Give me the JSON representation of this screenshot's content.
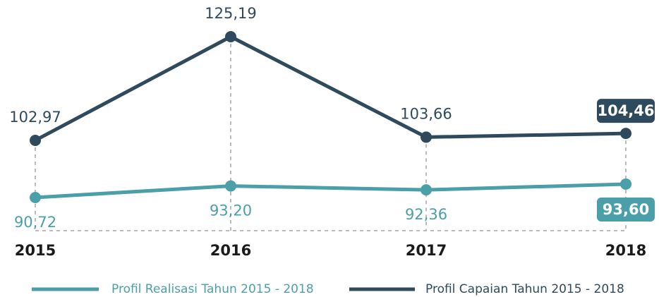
{
  "chart_data": {
    "type": "line",
    "categories": [
      "2015",
      "2016",
      "2017",
      "2018"
    ],
    "series": [
      {
        "name": "Profil Realisasi Tahun 2015 - 2018",
        "color": "#4b9fa9",
        "values": [
          90.72,
          93.2,
          92.36,
          93.6
        ],
        "value_labels": [
          "90,72",
          "93,20",
          "92,36",
          "93,60"
        ]
      },
      {
        "name": "Profil Capaian Tahun 2015 - 2018",
        "color": "#2e4a5c",
        "values": [
          102.97,
          125.19,
          103.66,
          104.46
        ],
        "value_labels": [
          "102,97",
          "125,19",
          "103,66",
          "104,46"
        ]
      }
    ]
  }
}
